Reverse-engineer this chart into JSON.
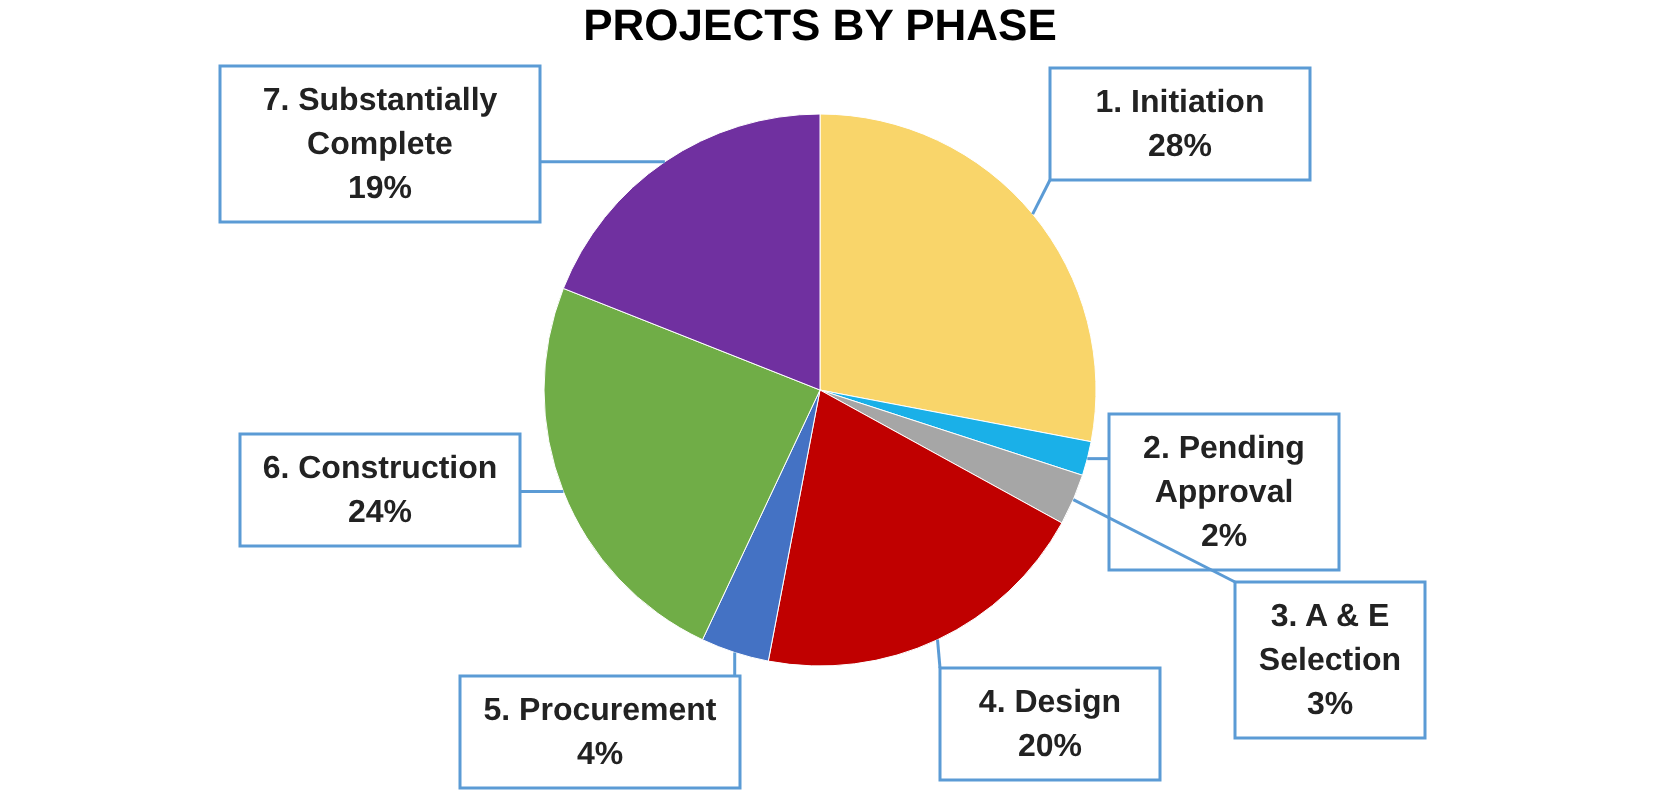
{
  "chart_data": {
    "type": "pie",
    "title": "PROJECTS BY PHASE",
    "categories": [
      "1. Initiation",
      "2. Pending Approval",
      "3. A & E Selection",
      "4. Design",
      "5. Procurement",
      "6. Construction",
      "7. Substantially Complete"
    ],
    "values": [
      28,
      2,
      3,
      20,
      4,
      24,
      19
    ],
    "value_labels": [
      "28%",
      "2%",
      "3%",
      "20%",
      "4%",
      "24%",
      "19%"
    ],
    "colors": [
      "#f9d56a",
      "#1ab0e8",
      "#a6a6a6",
      "#c00000",
      "#4472c4",
      "#70ad47",
      "#7030a0"
    ]
  }
}
